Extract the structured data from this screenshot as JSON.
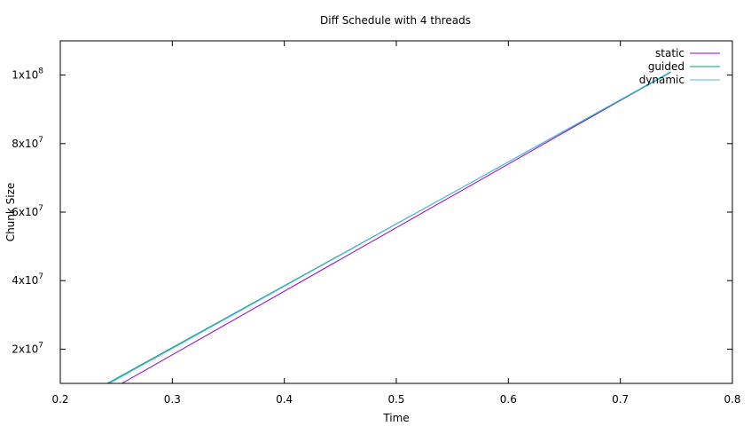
{
  "chart_data": {
    "type": "line",
    "title": "Diff Schedule with 4 threads",
    "xlabel": "Time",
    "ylabel": "Chunk Size",
    "xlim": [
      0.2,
      0.8
    ],
    "ylim": [
      10000000,
      110000000
    ],
    "x_ticks": [
      0.2,
      0.3,
      0.4,
      0.5,
      0.6,
      0.7,
      0.8
    ],
    "x_tick_labels": [
      "0.2",
      "0.3",
      "0.4",
      "0.5",
      "0.6",
      "0.7",
      "0.8"
    ],
    "y_ticks": [
      {
        "value": 20000000,
        "mantissa": "2x10",
        "exp": "7"
      },
      {
        "value": 40000000,
        "mantissa": "4x10",
        "exp": "7"
      },
      {
        "value": 60000000,
        "mantissa": "6x10",
        "exp": "7"
      },
      {
        "value": 80000000,
        "mantissa": "8x10",
        "exp": "7"
      },
      {
        "value": 100000000,
        "mantissa": "1x10",
        "exp": "8"
      }
    ],
    "grid": false,
    "legend_position": "top-right",
    "series": [
      {
        "name": "static",
        "color": "#9400d3",
        "x": [
          0.255,
          0.74
        ],
        "y": [
          10000000,
          100000000
        ]
      },
      {
        "name": "guided",
        "color": "#009e73",
        "x": [
          0.242,
          0.745
        ],
        "y": [
          10000000,
          100800000
        ]
      },
      {
        "name": "dynamic",
        "color": "#56b4e9",
        "x": [
          0.244,
          0.745
        ],
        "y": [
          10000000,
          101000000
        ]
      }
    ]
  }
}
